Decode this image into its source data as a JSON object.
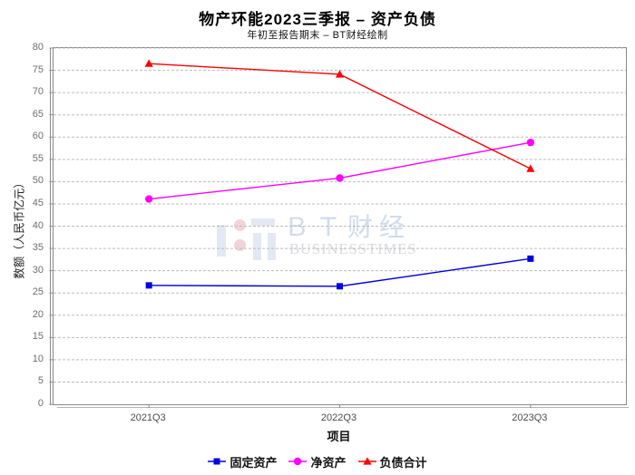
{
  "chart_data": {
    "type": "line",
    "title": "物产环能2023三季报 – 资产负债",
    "subtitle": "年初至报告期末 – BT财经绘制",
    "xlabel": "项目",
    "ylabel": "数额（人民币亿元）",
    "categories": [
      "2021Q3",
      "2022Q3",
      "2023Q3"
    ],
    "series": [
      {
        "name": "固定资产",
        "marker": "square",
        "color": "#0000e0",
        "values": [
          26.7,
          26.5,
          32.7
        ]
      },
      {
        "name": "净资产",
        "marker": "circle",
        "color": "#ff00ff",
        "values": [
          46.1,
          50.8,
          58.8
        ]
      },
      {
        "name": "负债合计",
        "marker": "triangle",
        "color": "#ff0000",
        "values": [
          76.5,
          74.1,
          52.9
        ]
      }
    ],
    "ylim": [
      0,
      80
    ],
    "ytick_step": 5,
    "grid": "horizontal-dashed",
    "legend_position": "bottom"
  },
  "watermark": {
    "brand_cn": "ＢＴ财经",
    "brand_en": "BUSINESSTIMES",
    "bar_color": "#e2e9f2",
    "dot_color": "#f3d3d8"
  },
  "style": {
    "axis_color": "#898989",
    "axis_shadow_color": "#b3b3b3",
    "grid_color": "#bcbcbc",
    "tick_label_color": "#6e6e6e"
  }
}
